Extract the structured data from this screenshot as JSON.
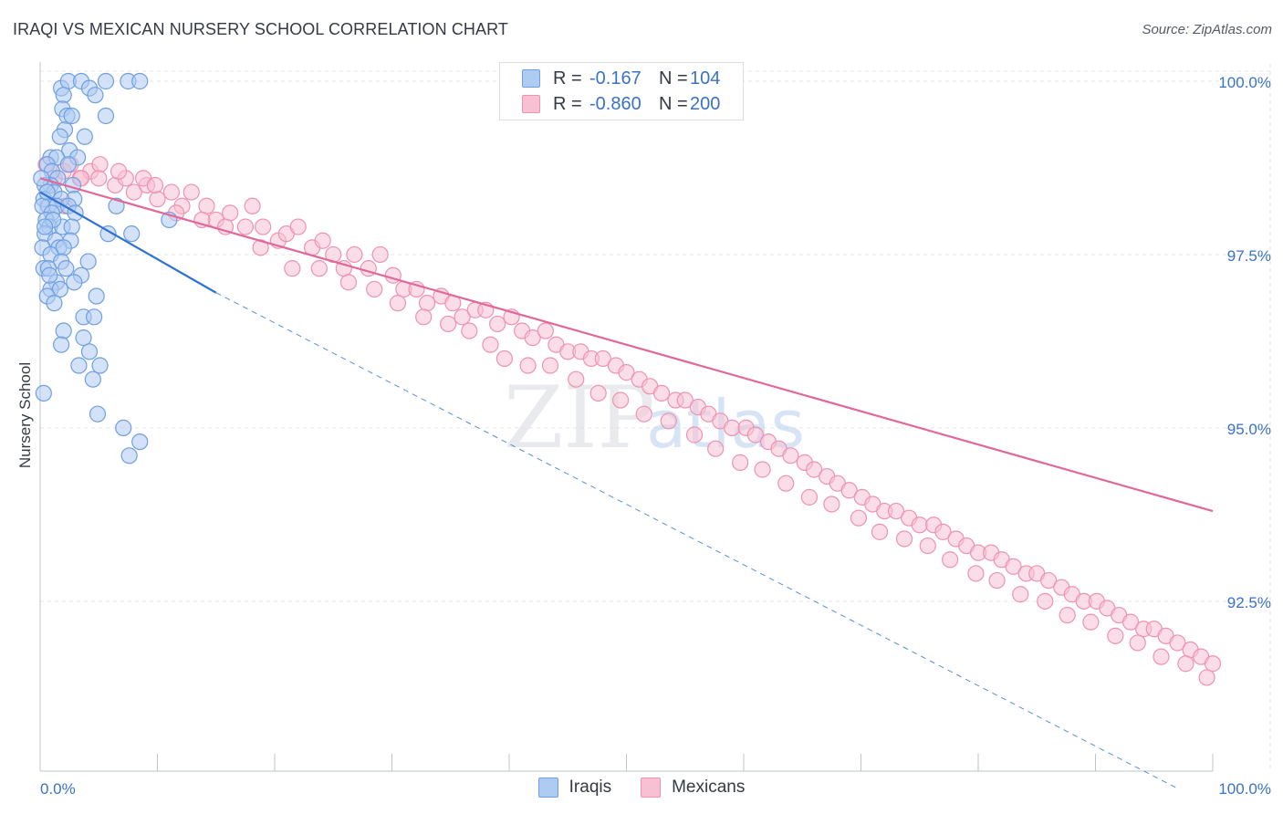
{
  "title": "IRAQI VS MEXICAN NURSERY SCHOOL CORRELATION CHART",
  "source": "Source: ZipAtlas.com",
  "watermark": {
    "zip": "ZIP",
    "atlas": "atlas"
  },
  "legend_top": [
    {
      "r_label": "R =",
      "r_value": "-0.167",
      "n_label": "N =",
      "n_value": "104"
    },
    {
      "r_label": "R =",
      "r_value": "-0.860",
      "n_label": "N =",
      "n_value": "200"
    }
  ],
  "legend_bottom": [
    {
      "label": "Iraqis"
    },
    {
      "label": "Mexicans"
    }
  ],
  "colors": {
    "iraqi_fill": "#aecbf2",
    "iraqi_stroke": "#6f9fe0",
    "iraqi_line": "#2f73d0",
    "mexican_fill": "#f7c1d3",
    "mexican_stroke": "#ee92b2",
    "mexican_line": "#e2679a",
    "tick_text": "#3a72c4",
    "grid": "#e6e6e6"
  },
  "chart_data": {
    "type": "scatter",
    "title": "IRAQI VS MEXICAN NURSERY SCHOOL CORRELATION CHART",
    "xlabel": "",
    "ylabel": "Nursery School",
    "xlim": [
      0,
      100
    ],
    "ylim": [
      89.8,
      100.2
    ],
    "x_tick_labels": [
      "0.0%",
      "100.0%"
    ],
    "y_ticks": [
      100.0,
      97.5,
      95.0,
      92.5
    ],
    "y_tick_labels": [
      "100.0%",
      "97.5%",
      "95.0%",
      "92.5%"
    ],
    "grid": true,
    "series": [
      {
        "name": "Iraqis",
        "R": -0.167,
        "N": 104,
        "trend": {
          "x": [
            0,
            15
          ],
          "y": [
            98.4,
            96.95
          ]
        },
        "trend_extended": {
          "x": [
            15,
            97
          ],
          "y": [
            96.95,
            89.8
          ]
        },
        "points": [
          [
            1.8,
            99.9
          ],
          [
            2.4,
            100.0
          ],
          [
            3.5,
            100.0
          ],
          [
            4.2,
            99.9
          ],
          [
            5.6,
            100.0
          ],
          [
            7.5,
            100.0
          ],
          [
            8.5,
            100.0
          ],
          [
            4.7,
            99.8
          ],
          [
            2.0,
            99.8
          ],
          [
            1.9,
            99.6
          ],
          [
            2.3,
            99.5
          ],
          [
            2.7,
            99.5
          ],
          [
            5.6,
            99.5
          ],
          [
            2.1,
            99.3
          ],
          [
            3.8,
            99.2
          ],
          [
            1.7,
            99.2
          ],
          [
            2.5,
            99.0
          ],
          [
            0.9,
            98.9
          ],
          [
            1.4,
            98.9
          ],
          [
            3.2,
            98.9
          ],
          [
            0.6,
            98.8
          ],
          [
            2.4,
            98.8
          ],
          [
            1.0,
            98.7
          ],
          [
            1.5,
            98.6
          ],
          [
            0.9,
            98.5
          ],
          [
            0.4,
            98.5
          ],
          [
            2.8,
            98.5
          ],
          [
            1.2,
            98.4
          ],
          [
            0.3,
            98.3
          ],
          [
            2.9,
            98.3
          ],
          [
            1.8,
            98.3
          ],
          [
            0.7,
            98.2
          ],
          [
            0.2,
            98.2
          ],
          [
            1.4,
            98.2
          ],
          [
            2.4,
            98.2
          ],
          [
            6.5,
            98.2
          ],
          [
            1.0,
            98.1
          ],
          [
            3.0,
            98.1
          ],
          [
            0.5,
            98.0
          ],
          [
            11.0,
            98.0
          ],
          [
            0.8,
            97.9
          ],
          [
            1.9,
            97.9
          ],
          [
            2.7,
            97.9
          ],
          [
            5.8,
            97.8
          ],
          [
            7.8,
            97.8
          ],
          [
            0.4,
            97.8
          ],
          [
            1.3,
            97.7
          ],
          [
            2.6,
            97.7
          ],
          [
            0.2,
            97.6
          ],
          [
            1.6,
            97.6
          ],
          [
            2.0,
            97.6
          ],
          [
            0.9,
            97.5
          ],
          [
            1.8,
            97.4
          ],
          [
            4.1,
            97.4
          ],
          [
            0.3,
            97.3
          ],
          [
            0.7,
            97.3
          ],
          [
            3.5,
            97.2
          ],
          [
            1.4,
            97.1
          ],
          [
            2.9,
            97.1
          ],
          [
            0.9,
            97.0
          ],
          [
            1.7,
            97.0
          ],
          [
            0.6,
            96.9
          ],
          [
            4.8,
            96.9
          ],
          [
            1.2,
            96.8
          ],
          [
            3.7,
            96.6
          ],
          [
            4.6,
            96.6
          ],
          [
            2.0,
            96.4
          ],
          [
            3.7,
            96.3
          ],
          [
            1.8,
            96.2
          ],
          [
            4.2,
            96.1
          ],
          [
            5.1,
            95.9
          ],
          [
            3.3,
            95.9
          ],
          [
            4.5,
            95.7
          ],
          [
            0.3,
            95.5
          ],
          [
            4.9,
            95.2
          ],
          [
            7.1,
            95.0
          ],
          [
            8.5,
            94.8
          ],
          [
            7.6,
            94.6
          ],
          [
            0.1,
            98.6
          ],
          [
            0.6,
            98.4
          ],
          [
            1.1,
            98.0
          ],
          [
            0.4,
            97.9
          ],
          [
            2.2,
            97.3
          ],
          [
            0.8,
            97.2
          ]
        ]
      },
      {
        "name": "Mexicans",
        "R": -0.86,
        "N": 200,
        "trend": {
          "x": [
            0,
            100
          ],
          "y": [
            98.6,
            93.8
          ]
        },
        "points": [
          [
            0.5,
            98.8
          ],
          [
            1.2,
            98.6
          ],
          [
            2.0,
            98.7
          ],
          [
            2.6,
            98.8
          ],
          [
            3.4,
            98.6
          ],
          [
            4.3,
            98.7
          ],
          [
            5.1,
            98.8
          ],
          [
            6.4,
            98.5
          ],
          [
            7.3,
            98.6
          ],
          [
            8.0,
            98.4
          ],
          [
            9.1,
            98.5
          ],
          [
            10.0,
            98.3
          ],
          [
            11.2,
            98.4
          ],
          [
            12.1,
            98.2
          ],
          [
            12.9,
            98.4
          ],
          [
            14.2,
            98.2
          ],
          [
            15.0,
            98.0
          ],
          [
            16.2,
            98.1
          ],
          [
            17.5,
            97.9
          ],
          [
            18.1,
            98.2
          ],
          [
            19.0,
            97.9
          ],
          [
            20.3,
            97.7
          ],
          [
            21.0,
            97.8
          ],
          [
            22.0,
            97.9
          ],
          [
            23.2,
            97.6
          ],
          [
            24.1,
            97.7
          ],
          [
            25.0,
            97.5
          ],
          [
            25.9,
            97.3
          ],
          [
            26.8,
            97.5
          ],
          [
            28.0,
            97.3
          ],
          [
            29.0,
            97.5
          ],
          [
            30.1,
            97.2
          ],
          [
            31.0,
            97.0
          ],
          [
            32.1,
            97.0
          ],
          [
            33.0,
            96.8
          ],
          [
            34.2,
            96.9
          ],
          [
            35.2,
            96.8
          ],
          [
            36.0,
            96.6
          ],
          [
            37.1,
            96.7
          ],
          [
            38.0,
            96.7
          ],
          [
            39.0,
            96.5
          ],
          [
            40.2,
            96.6
          ],
          [
            41.1,
            96.4
          ],
          [
            42.0,
            96.3
          ],
          [
            43.1,
            96.4
          ],
          [
            44.0,
            96.2
          ],
          [
            45.0,
            96.1
          ],
          [
            46.1,
            96.1
          ],
          [
            47.0,
            96.0
          ],
          [
            48.0,
            96.0
          ],
          [
            49.1,
            95.9
          ],
          [
            50.0,
            95.8
          ],
          [
            51.1,
            95.7
          ],
          [
            52.0,
            95.6
          ],
          [
            53.0,
            95.5
          ],
          [
            54.2,
            95.4
          ],
          [
            55.0,
            95.4
          ],
          [
            56.1,
            95.3
          ],
          [
            57.0,
            95.2
          ],
          [
            58.0,
            95.1
          ],
          [
            59.0,
            95.0
          ],
          [
            60.2,
            95.0
          ],
          [
            61.0,
            94.9
          ],
          [
            62.1,
            94.8
          ],
          [
            63.0,
            94.7
          ],
          [
            64.0,
            94.6
          ],
          [
            65.2,
            94.5
          ],
          [
            66.0,
            94.4
          ],
          [
            67.1,
            94.3
          ],
          [
            68.0,
            94.2
          ],
          [
            69.0,
            94.1
          ],
          [
            70.1,
            94.0
          ],
          [
            71.0,
            93.9
          ],
          [
            72.0,
            93.8
          ],
          [
            73.0,
            93.8
          ],
          [
            74.1,
            93.7
          ],
          [
            75.0,
            93.6
          ],
          [
            76.2,
            93.6
          ],
          [
            77.0,
            93.5
          ],
          [
            78.1,
            93.4
          ],
          [
            79.0,
            93.3
          ],
          [
            80.0,
            93.2
          ],
          [
            81.1,
            93.2
          ],
          [
            82.0,
            93.1
          ],
          [
            83.0,
            93.0
          ],
          [
            84.1,
            92.9
          ],
          [
            85.0,
            92.9
          ],
          [
            86.0,
            92.8
          ],
          [
            87.1,
            92.7
          ],
          [
            88.0,
            92.6
          ],
          [
            89.0,
            92.5
          ],
          [
            90.1,
            92.5
          ],
          [
            91.0,
            92.4
          ],
          [
            92.0,
            92.3
          ],
          [
            93.0,
            92.2
          ],
          [
            94.1,
            92.1
          ],
          [
            95.0,
            92.1
          ],
          [
            96.0,
            92.0
          ],
          [
            97.0,
            91.9
          ],
          [
            98.1,
            91.8
          ],
          [
            99.0,
            91.7
          ],
          [
            100.0,
            91.6
          ],
          [
            2.1,
            98.2
          ],
          [
            3.5,
            98.6
          ],
          [
            5.0,
            98.6
          ],
          [
            6.7,
            98.7
          ],
          [
            8.8,
            98.6
          ],
          [
            9.8,
            98.5
          ],
          [
            11.6,
            98.1
          ],
          [
            13.8,
            98.0
          ],
          [
            15.8,
            97.9
          ],
          [
            18.8,
            97.6
          ],
          [
            21.5,
            97.3
          ],
          [
            23.8,
            97.3
          ],
          [
            26.3,
            97.1
          ],
          [
            28.5,
            97.0
          ],
          [
            30.5,
            96.8
          ],
          [
            32.7,
            96.6
          ],
          [
            34.8,
            96.5
          ],
          [
            36.6,
            96.4
          ],
          [
            38.4,
            96.2
          ],
          [
            39.6,
            96.0
          ],
          [
            41.6,
            95.9
          ],
          [
            43.5,
            95.9
          ],
          [
            45.7,
            95.7
          ],
          [
            47.6,
            95.5
          ],
          [
            49.5,
            95.4
          ],
          [
            51.5,
            95.2
          ],
          [
            53.6,
            95.1
          ],
          [
            55.8,
            94.9
          ],
          [
            57.6,
            94.7
          ],
          [
            59.7,
            94.5
          ],
          [
            61.6,
            94.4
          ],
          [
            63.6,
            94.2
          ],
          [
            65.6,
            94.0
          ],
          [
            67.5,
            93.9
          ],
          [
            69.8,
            93.7
          ],
          [
            71.6,
            93.5
          ],
          [
            73.7,
            93.4
          ],
          [
            75.7,
            93.3
          ],
          [
            77.6,
            93.1
          ],
          [
            79.8,
            92.9
          ],
          [
            81.6,
            92.8
          ],
          [
            83.6,
            92.6
          ],
          [
            85.7,
            92.5
          ],
          [
            87.6,
            92.3
          ],
          [
            89.6,
            92.2
          ],
          [
            91.7,
            92.0
          ],
          [
            93.6,
            91.9
          ],
          [
            95.6,
            91.7
          ],
          [
            97.7,
            91.6
          ],
          [
            99.5,
            91.4
          ]
        ]
      }
    ]
  }
}
